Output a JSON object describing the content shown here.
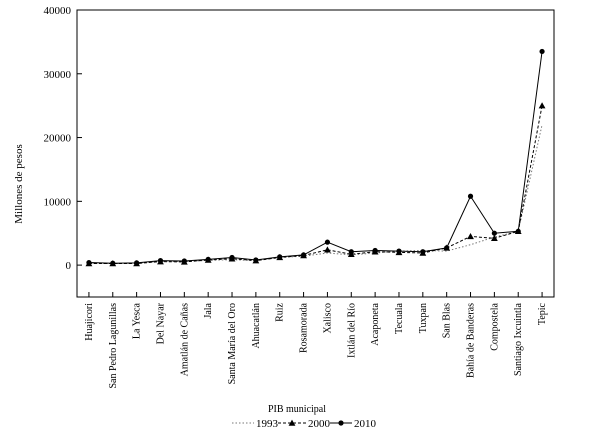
{
  "chart_data": {
    "type": "line",
    "title": "",
    "ylabel": "Millones de pesos",
    "xlabel": "",
    "ylim": [
      -5000,
      40000
    ],
    "yticks": [
      0,
      10000,
      20000,
      30000,
      40000
    ],
    "ytick_labels": [
      "0",
      "10000",
      "20000",
      "30000",
      "40000"
    ],
    "grid": false,
    "legend_title": "PIB municipal",
    "legend_position": "bottom-center",
    "categories": [
      "Huajicori",
      "San Pedro Lagunillas",
      "La Yesca",
      "Del Nayar",
      "Amatlán de Cañas",
      "Jala",
      "Santa María del Oro",
      "Ahuacatlán",
      "Ruiz",
      "Rosamorada",
      "Xalisco",
      "Ixtlán del Río",
      "Acaponeta",
      "Tecuala",
      "Tuxpan",
      "San Blas",
      "Bahía de Banderas",
      "Compostela",
      "Santiago Ixcuintla",
      "Tepic"
    ],
    "series": [
      {
        "name": "1993",
        "style": "dotted",
        "marker": "none",
        "color": "#777777",
        "values": [
          300,
          250,
          300,
          600,
          550,
          750,
          850,
          700,
          1200,
          1400,
          1900,
          1600,
          1900,
          2200,
          2300,
          2200,
          3200,
          4400,
          5300,
          22000
        ]
      },
      {
        "name": "2000",
        "style": "dashed",
        "marker": "triangle",
        "color": "#000000",
        "values": [
          250,
          250,
          250,
          550,
          500,
          800,
          1000,
          700,
          1200,
          1500,
          2400,
          1700,
          2100,
          2000,
          1900,
          2700,
          4500,
          4200,
          5300,
          25000
        ]
      },
      {
        "name": "2010",
        "style": "solid",
        "marker": "circle",
        "color": "#000000",
        "values": [
          400,
          300,
          350,
          700,
          650,
          900,
          1200,
          800,
          1300,
          1600,
          3600,
          2100,
          2300,
          2200,
          2100,
          2700,
          10800,
          5000,
          5300,
          33500
        ]
      }
    ]
  }
}
